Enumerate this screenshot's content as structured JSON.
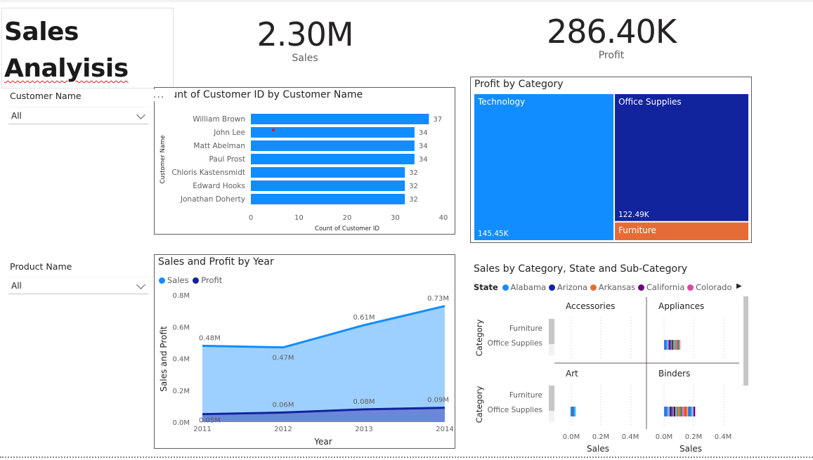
{
  "report": {
    "title_line1": "Sales",
    "title_line2": "Analyisis"
  },
  "kpis": [
    {
      "value": "2.30M",
      "label": "Sales"
    },
    {
      "value": "286.40K",
      "label": "Profit"
    }
  ],
  "slicers": {
    "customer": {
      "title": "Customer Name",
      "value": "All"
    },
    "product": {
      "title": "Product Name",
      "value": "All"
    }
  },
  "customer_chart": {
    "title": "Count of Customer ID by Customer Name",
    "more_options": "...",
    "colors": {
      "bar": "#118dff"
    },
    "chart_data": {
      "type": "bar",
      "orientation": "horizontal",
      "categories": [
        "William Brown",
        "John Lee",
        "Matt Abelman",
        "Paul Prost",
        "Chloris Kastensmidt",
        "Edward Hooks",
        "Jonathan Doherty"
      ],
      "values": [
        37,
        34,
        34,
        34,
        32,
        32,
        32
      ],
      "xlabel": "Count of Customer ID",
      "ylabel": "Customer Name",
      "xticks": [
        "0",
        "10",
        "20",
        "30",
        "40"
      ],
      "xlim": [
        0,
        40
      ]
    }
  },
  "profit_treemap": {
    "title": "Profit by Category",
    "chart_data": {
      "type": "treemap",
      "items": [
        {
          "name": "Technology",
          "value_label": "145.45K",
          "value": 145.45,
          "color": "#118dff"
        },
        {
          "name": "Office Supplies",
          "value_label": "122.49K",
          "value": 122.49,
          "color": "#12239e"
        },
        {
          "name": "Furniture",
          "value_label": "",
          "value": 18.46,
          "color": "#e66c37"
        }
      ]
    }
  },
  "year_chart": {
    "title": "Sales and Profit by Year",
    "legend": [
      {
        "name": "Sales",
        "color": "#118dff"
      },
      {
        "name": "Profit",
        "color": "#12239e"
      }
    ],
    "chart_data": {
      "type": "area",
      "x": [
        2011,
        2012,
        2013,
        2014
      ],
      "xticks": [
        "2011",
        "2012",
        "2013",
        "2014"
      ],
      "series": [
        {
          "name": "Sales",
          "values": [
            0.48,
            0.47,
            0.61,
            0.73
          ],
          "labels": [
            "0.48M",
            "0.47M",
            "0.61M",
            "0.73M"
          ]
        },
        {
          "name": "Profit",
          "values": [
            0.05,
            0.06,
            0.08,
            0.09
          ],
          "labels": [
            "0.05M",
            "0.06M",
            "0.08M",
            "0.09M"
          ]
        }
      ],
      "yticks": [
        "0.0M",
        "0.2M",
        "0.4M",
        "0.6M",
        "0.8M"
      ],
      "ylim": [
        0,
        0.8
      ],
      "xlabel": "Year",
      "ylabel": "Sales and Profit"
    }
  },
  "small_multiples": {
    "title": "Sales by Category, State and Sub-Category",
    "legend_label": "State",
    "legend": [
      {
        "name": "Alabama",
        "color": "#118dff"
      },
      {
        "name": "Arizona",
        "color": "#12239e"
      },
      {
        "name": "Arkansas",
        "color": "#e66c37"
      },
      {
        "name": "California",
        "color": "#6b007b"
      },
      {
        "name": "Colorado",
        "color": "#e044a7"
      }
    ],
    "legend_more": "▶",
    "category_axis_title": "Category",
    "sales_axis_title": "Sales",
    "categories": [
      "Furniture",
      "Office Supplies"
    ],
    "xticks": [
      "0.0M",
      "0.2M",
      "0.4M"
    ],
    "panels": [
      {
        "name": "Accessories"
      },
      {
        "name": "Appliances"
      },
      {
        "name": "Art"
      },
      {
        "name": "Binders"
      }
    ]
  }
}
